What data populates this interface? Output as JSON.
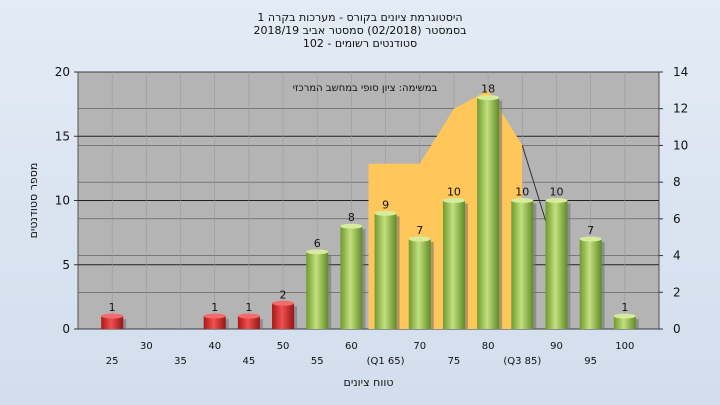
{
  "title_lines": [
    "היסטוגרמת ציונים בקורס - מערכות בקרה 1",
    "בסמסטר  (02/2018)  סמסטר אביב 2018/19",
    "סטודנטים רשומים - 102"
  ],
  "chart_data": {
    "type": "bar",
    "annotation": "במשימה: ציון סופי במחשב המרכזי",
    "xlabel": "טווח ציונים",
    "ylabel": "מספר סטודנטים",
    "ylim": [
      0,
      20
    ],
    "yticks": [
      0,
      5,
      10,
      15,
      20
    ],
    "y2lim": [
      0,
      14
    ],
    "y2ticks": [
      0,
      2,
      4,
      6,
      8,
      10,
      12,
      14
    ],
    "x_tick_labels": [
      "25",
      "30",
      "35",
      "40",
      "45",
      "50",
      "55",
      "60",
      "(Q1 65)",
      "70",
      "75",
      "80",
      "(Q3 85)",
      "90",
      "95",
      "100"
    ],
    "categories": [
      25,
      30,
      35,
      40,
      45,
      50,
      55,
      60,
      65,
      70,
      75,
      80,
      85,
      90,
      95,
      100
    ],
    "values": [
      1,
      0,
      0,
      1,
      1,
      2,
      6,
      8,
      9,
      7,
      10,
      18,
      10,
      10,
      7,
      1
    ],
    "fail_color": "#d42a2a",
    "pass_color": "#8fb84a",
    "fail_threshold": 55,
    "distribution_area": {
      "color": "#ffc65a",
      "x": [
        65,
        70,
        75,
        80,
        85
      ],
      "y2": [
        9,
        9,
        12,
        13,
        10
      ]
    },
    "median_line": {
      "x": [
        85,
        90
      ],
      "y2": [
        10,
        4
      ]
    },
    "grid": true
  }
}
